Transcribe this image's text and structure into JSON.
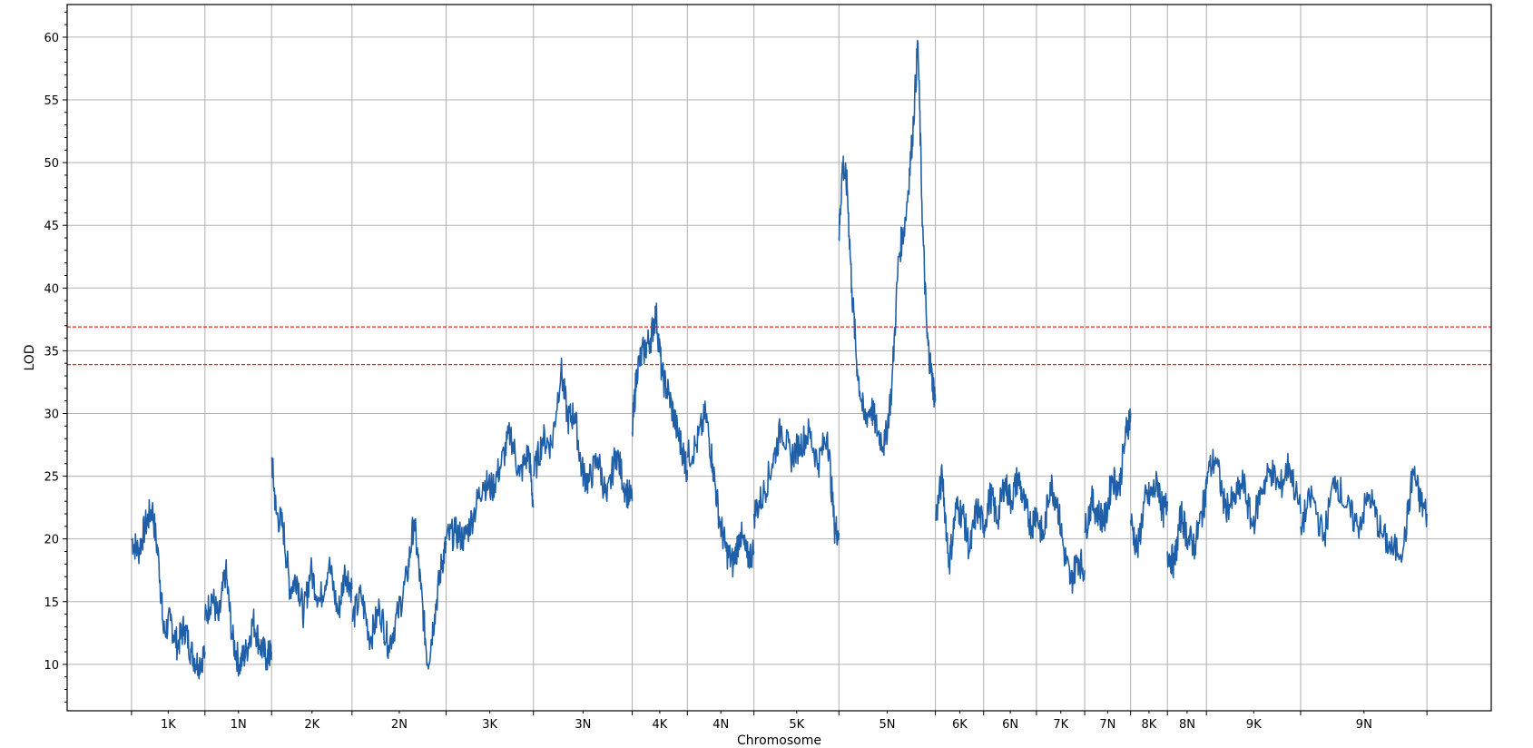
{
  "chart_data": {
    "type": "line",
    "title": "",
    "xlabel": "Chromosome",
    "ylabel": "LOD",
    "ylim": [
      6.3,
      62.6
    ],
    "xlim": [
      0,
      31
    ],
    "grid": true,
    "legend": "none",
    "y_ticks": [
      10,
      15,
      20,
      25,
      30,
      35,
      40,
      45,
      50,
      55,
      60
    ],
    "chromosome_boundaries": [
      1.4,
      3.0,
      4.45,
      6.2,
      8.25,
      10.15,
      12.3,
      13.5,
      14.95,
      16.8,
      18.9,
      19.95,
      21.1,
      22.15,
      23.15,
      23.95,
      24.8,
      26.85,
      29.6
    ],
    "chromosomes": [
      {
        "label": "1K",
        "center": 2.2
      },
      {
        "label": "1N",
        "center": 3.73
      },
      {
        "label": "2K",
        "center": 5.33
      },
      {
        "label": "2N",
        "center": 7.23
      },
      {
        "label": "3K",
        "center": 9.2
      },
      {
        "label": "3N",
        "center": 11.23
      },
      {
        "label": "4K",
        "center": 12.9
      },
      {
        "label": "4N",
        "center": 14.23
      },
      {
        "label": "5K",
        "center": 15.88
      },
      {
        "label": "5N",
        "center": 17.85
      },
      {
        "label": "6K",
        "center": 19.43
      },
      {
        "label": "6N",
        "center": 20.53
      },
      {
        "label": "7K",
        "center": 21.63
      },
      {
        "label": "7N",
        "center": 22.65
      },
      {
        "label": "8K",
        "center": 23.55
      },
      {
        "label": "8N",
        "center": 24.38
      },
      {
        "label": "9K",
        "center": 25.83
      },
      {
        "label": "9N",
        "center": 28.23
      }
    ],
    "thresholds": [
      {
        "value": 36.9,
        "color": "#e8201e"
      },
      {
        "value": 33.9,
        "color": "#e8201e"
      }
    ],
    "line_color": "#1f5fa8",
    "series": [
      {
        "segment": "1K",
        "x": [
          1.4,
          1.55,
          1.7,
          1.85,
          2.0,
          2.1,
          2.25,
          2.4,
          2.55,
          2.7,
          2.85,
          3.0
        ],
        "y": [
          20.0,
          19.0,
          21.0,
          22.5,
          18.0,
          12.5,
          13.5,
          11.5,
          13.0,
          11.0,
          10.0,
          11.0
        ]
      },
      {
        "segment": "1N",
        "x": [
          3.0,
          3.15,
          3.3,
          3.45,
          3.6,
          3.75,
          3.9,
          4.05,
          4.2,
          4.35,
          4.45
        ],
        "y": [
          13.5,
          15.5,
          13.5,
          17.5,
          12.0,
          10.0,
          11.0,
          13.5,
          11.5,
          10.5,
          11.0
        ]
      },
      {
        "segment": "2K",
        "x": [
          4.45,
          4.55,
          4.7,
          4.85,
          5.0,
          5.15,
          5.3,
          5.5,
          5.7,
          5.9,
          6.05,
          6.2
        ],
        "y": [
          26.5,
          22.0,
          21.0,
          16.0,
          17.0,
          14.0,
          17.5,
          15.0,
          18.0,
          14.0,
          17.5,
          16.0
        ]
      },
      {
        "segment": "2N",
        "x": [
          6.2,
          6.4,
          6.6,
          6.8,
          7.0,
          7.2,
          7.4,
          7.55,
          7.7,
          7.85,
          8.0,
          8.15,
          8.25
        ],
        "y": [
          13.5,
          15.5,
          12.0,
          14.5,
          11.5,
          14.0,
          17.0,
          21.5,
          16.0,
          10.0,
          14.0,
          18.0,
          19.5
        ]
      },
      {
        "segment": "3K",
        "x": [
          8.25,
          8.45,
          8.65,
          8.85,
          9.05,
          9.25,
          9.45,
          9.65,
          9.85,
          10.05,
          10.15
        ],
        "y": [
          20.0,
          20.5,
          20.0,
          22.0,
          24.5,
          24.0,
          26.0,
          28.5,
          25.0,
          27.0,
          22.5
        ]
      },
      {
        "segment": "3N",
        "x": [
          10.15,
          10.35,
          10.55,
          10.75,
          10.9,
          11.05,
          11.2,
          11.35,
          11.55,
          11.75,
          11.95,
          12.15,
          12.3
        ],
        "y": [
          25.0,
          28.0,
          27.5,
          33.5,
          29.5,
          30.0,
          25.5,
          24.5,
          26.5,
          23.0,
          27.0,
          24.0,
          23.0
        ]
      },
      {
        "segment": "4K",
        "x": [
          12.3,
          12.4,
          12.55,
          12.7,
          12.82,
          12.95,
          13.1,
          13.25,
          13.4,
          13.5
        ],
        "y": [
          28.5,
          33.5,
          35.0,
          36.0,
          38.0,
          33.0,
          31.5,
          29.0,
          27.0,
          25.5
        ]
      },
      {
        "segment": "4N",
        "x": [
          13.5,
          13.7,
          13.9,
          14.05,
          14.2,
          14.35,
          14.5,
          14.65,
          14.8,
          14.95
        ],
        "y": [
          26.5,
          27.5,
          30.0,
          26.0,
          21.5,
          19.0,
          18.0,
          20.5,
          18.5,
          19.0
        ]
      },
      {
        "segment": "5K",
        "x": [
          14.95,
          15.15,
          15.35,
          15.55,
          15.75,
          15.95,
          16.15,
          16.35,
          16.55,
          16.7,
          16.8
        ],
        "y": [
          22.0,
          23.5,
          26.0,
          29.0,
          26.5,
          27.5,
          28.5,
          26.0,
          28.5,
          21.0,
          20.5
        ]
      },
      {
        "segment": "5N",
        "x": [
          16.8,
          16.88,
          16.98,
          17.08,
          17.2,
          17.35,
          17.5,
          17.65,
          17.8,
          17.95,
          18.1,
          18.25,
          18.4,
          18.52,
          18.62,
          18.72,
          18.82,
          18.9
        ],
        "y": [
          44.0,
          50.0,
          48.0,
          40.0,
          33.5,
          29.5,
          30.5,
          28.5,
          27.5,
          32.0,
          42.5,
          45.5,
          52.0,
          59.5,
          45.0,
          36.0,
          33.0,
          31.0
        ]
      },
      {
        "segment": "6K",
        "x": [
          18.9,
          19.05,
          19.2,
          19.35,
          19.5,
          19.65,
          19.8,
          19.95
        ],
        "y": [
          21.5,
          25.0,
          18.0,
          22.5,
          22.0,
          19.0,
          22.5,
          21.0
        ]
      },
      {
        "segment": "6N",
        "x": [
          19.95,
          20.1,
          20.25,
          20.4,
          20.55,
          20.7,
          20.85,
          21.0,
          21.1
        ],
        "y": [
          21.0,
          23.5,
          21.5,
          24.5,
          23.0,
          25.0,
          22.5,
          21.0,
          22.5
        ]
      },
      {
        "segment": "7K",
        "x": [
          21.1,
          21.25,
          21.4,
          21.55,
          21.7,
          21.85,
          22.0,
          22.15
        ],
        "y": [
          22.0,
          20.0,
          24.5,
          23.0,
          19.0,
          16.5,
          18.5,
          17.5
        ]
      },
      {
        "segment": "7N",
        "x": [
          22.15,
          22.3,
          22.45,
          22.6,
          22.75,
          22.9,
          23.05,
          23.15
        ],
        "y": [
          20.5,
          23.0,
          22.0,
          21.5,
          25.0,
          24.0,
          28.5,
          30.0
        ]
      },
      {
        "segment": "8K",
        "x": [
          23.15,
          23.3,
          23.45,
          23.6,
          23.75,
          23.85,
          23.95
        ],
        "y": [
          21.5,
          19.0,
          23.0,
          23.5,
          24.5,
          22.0,
          23.0
        ]
      },
      {
        "segment": "8N",
        "x": [
          23.95,
          24.1,
          24.25,
          24.4,
          24.55,
          24.7,
          24.8
        ],
        "y": [
          19.0,
          18.0,
          22.0,
          20.0,
          19.5,
          22.0,
          24.0
        ]
      },
      {
        "segment": "9K",
        "x": [
          24.8,
          25.0,
          25.2,
          25.4,
          25.6,
          25.8,
          26.0,
          26.2,
          26.4,
          26.6,
          26.85
        ],
        "y": [
          25.0,
          26.5,
          22.5,
          23.0,
          24.5,
          21.0,
          24.0,
          25.5,
          24.0,
          26.0,
          22.0
        ]
      },
      {
        "segment": "9N",
        "x": [
          26.85,
          27.1,
          27.35,
          27.6,
          27.85,
          28.1,
          28.35,
          28.6,
          28.85,
          29.1,
          29.3,
          29.45,
          29.6
        ],
        "y": [
          21.0,
          23.5,
          20.0,
          25.0,
          22.5,
          21.0,
          23.5,
          20.5,
          19.0,
          19.5,
          25.5,
          23.0,
          22.0
        ]
      }
    ]
  }
}
